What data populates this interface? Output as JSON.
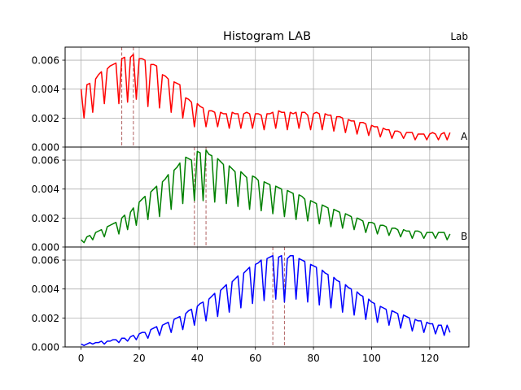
{
  "figure": {
    "title": "Histogram LAB",
    "corner_label": "Lab"
  },
  "chart_data": [
    {
      "type": "line",
      "panel_label": "A",
      "color": "#ff0000",
      "marker_color": "#b06060",
      "x_start": 0,
      "x_step": 1,
      "ylim": [
        0,
        0.0069
      ],
      "yticks": [
        "0.000",
        "0.002",
        "0.004",
        "0.006"
      ],
      "ytick_values": [
        0,
        0.002,
        0.004,
        0.006
      ],
      "markers": [
        14,
        18
      ],
      "grid": true,
      "values": [
        0.004,
        0.002,
        0.0043,
        0.0044,
        0.0024,
        0.0047,
        0.005,
        0.0052,
        0.003,
        0.0054,
        0.0056,
        0.0057,
        0.0058,
        0.003,
        0.0061,
        0.0062,
        0.0031,
        0.0062,
        0.0064,
        0.0033,
        0.0061,
        0.0061,
        0.006,
        0.0028,
        0.0057,
        0.0057,
        0.0056,
        0.0027,
        0.005,
        0.0049,
        0.0047,
        0.0024,
        0.0045,
        0.0044,
        0.0043,
        0.002,
        0.0034,
        0.0033,
        0.0031,
        0.0014,
        0.003,
        0.0028,
        0.0027,
        0.0014,
        0.0025,
        0.0025,
        0.0024,
        0.0014,
        0.0024,
        0.0023,
        0.0023,
        0.0013,
        0.0024,
        0.0023,
        0.0023,
        0.0013,
        0.0023,
        0.0024,
        0.0023,
        0.0013,
        0.0023,
        0.0023,
        0.0022,
        0.0012,
        0.0023,
        0.0023,
        0.0024,
        0.0013,
        0.0025,
        0.0024,
        0.0024,
        0.0012,
        0.0024,
        0.0023,
        0.0024,
        0.0013,
        0.0024,
        0.0024,
        0.0022,
        0.0012,
        0.0023,
        0.0024,
        0.0023,
        0.0012,
        0.0023,
        0.0022,
        0.0022,
        0.0011,
        0.0021,
        0.0021,
        0.002,
        0.001,
        0.0019,
        0.0018,
        0.0018,
        0.0009,
        0.0017,
        0.0017,
        0.0016,
        0.0008,
        0.0015,
        0.0014,
        0.0014,
        0.0007,
        0.0013,
        0.0012,
        0.0012,
        0.0006,
        0.0011,
        0.0011,
        0.001,
        0.0006,
        0.001,
        0.001,
        0.001,
        0.0005,
        0.0009,
        0.0009,
        0.0009,
        0.0005,
        0.0009,
        0.001,
        0.0009,
        0.0005,
        0.0009,
        0.001,
        0.0005,
        0.001
      ]
    },
    {
      "type": "line",
      "panel_label": "B",
      "color": "#008000",
      "marker_color": "#b06060",
      "x_start": 0,
      "x_step": 1,
      "ylim": [
        0,
        0.0069
      ],
      "yticks": [
        "0.000",
        "0.002",
        "0.004",
        "0.006"
      ],
      "ytick_values": [
        0,
        0.002,
        0.004,
        0.006
      ],
      "markers": [
        39,
        43
      ],
      "grid": true,
      "values": [
        0.0005,
        0.0003,
        0.0007,
        0.0008,
        0.0005,
        0.001,
        0.0011,
        0.0012,
        0.0007,
        0.0014,
        0.0015,
        0.0016,
        0.0017,
        0.0009,
        0.002,
        0.0022,
        0.0012,
        0.0024,
        0.0027,
        0.0015,
        0.0031,
        0.0033,
        0.0035,
        0.0019,
        0.0038,
        0.004,
        0.0042,
        0.0021,
        0.0045,
        0.0047,
        0.005,
        0.0026,
        0.0053,
        0.0055,
        0.0058,
        0.003,
        0.0062,
        0.0061,
        0.006,
        0.0032,
        0.0066,
        0.0065,
        0.0032,
        0.0067,
        0.0064,
        0.0063,
        0.0031,
        0.0061,
        0.0059,
        0.0057,
        0.003,
        0.0056,
        0.0054,
        0.0052,
        0.0028,
        0.0052,
        0.005,
        0.0048,
        0.0026,
        0.0049,
        0.0048,
        0.0046,
        0.0025,
        0.0045,
        0.0044,
        0.0043,
        0.0023,
        0.0042,
        0.0041,
        0.004,
        0.0021,
        0.0039,
        0.0038,
        0.0037,
        0.0019,
        0.0036,
        0.0035,
        0.0033,
        0.0018,
        0.0032,
        0.0031,
        0.003,
        0.0016,
        0.0029,
        0.0028,
        0.0027,
        0.0014,
        0.0026,
        0.0025,
        0.0024,
        0.0013,
        0.0023,
        0.0022,
        0.0021,
        0.0012,
        0.002,
        0.0019,
        0.0018,
        0.001,
        0.0017,
        0.0017,
        0.0016,
        0.0009,
        0.0015,
        0.0015,
        0.0014,
        0.0008,
        0.0013,
        0.0013,
        0.0012,
        0.0007,
        0.0012,
        0.0011,
        0.0011,
        0.0006,
        0.0011,
        0.0011,
        0.001,
        0.0006,
        0.001,
        0.001,
        0.001,
        0.0006,
        0.001,
        0.001,
        0.001,
        0.0005,
        0.0009
      ]
    },
    {
      "type": "line",
      "panel_label": "",
      "color": "#0000ff",
      "marker_color": "#b06060",
      "x_start": 0,
      "x_step": 1,
      "ylim": [
        0,
        0.0069
      ],
      "yticks": [
        "0.000",
        "0.002",
        "0.004",
        "0.006"
      ],
      "ytick_values": [
        0,
        0.002,
        0.004,
        0.006
      ],
      "xticks": [
        "0",
        "20",
        "40",
        "60",
        "80",
        "100",
        "120"
      ],
      "xtick_values": [
        0,
        20,
        40,
        60,
        80,
        100,
        120
      ],
      "xlim": [
        -5.5,
        133.5
      ],
      "markers": [
        66,
        70
      ],
      "grid": true,
      "values": [
        0.0002,
        0.0001,
        0.0002,
        0.0003,
        0.0002,
        0.0003,
        0.0003,
        0.0004,
        0.0002,
        0.0004,
        0.0004,
        0.0005,
        0.0005,
        0.0003,
        0.0006,
        0.0006,
        0.0004,
        0.0007,
        0.0008,
        0.0005,
        0.0009,
        0.001,
        0.001,
        0.0006,
        0.0012,
        0.0013,
        0.0014,
        0.0008,
        0.0015,
        0.0016,
        0.0017,
        0.001,
        0.0019,
        0.002,
        0.0021,
        0.0012,
        0.0023,
        0.0025,
        0.0026,
        0.0015,
        0.0028,
        0.003,
        0.0031,
        0.0018,
        0.0033,
        0.0035,
        0.0037,
        0.0021,
        0.0039,
        0.0041,
        0.0043,
        0.0024,
        0.0045,
        0.0047,
        0.0049,
        0.0027,
        0.0051,
        0.0053,
        0.0055,
        0.003,
        0.0057,
        0.0058,
        0.006,
        0.0032,
        0.0061,
        0.0062,
        0.0063,
        0.0033,
        0.0062,
        0.0063,
        0.0031,
        0.0061,
        0.0063,
        0.0063,
        0.0033,
        0.0061,
        0.006,
        0.0059,
        0.0031,
        0.0057,
        0.0056,
        0.0055,
        0.0029,
        0.0053,
        0.0051,
        0.005,
        0.0027,
        0.0048,
        0.0046,
        0.0045,
        0.0024,
        0.0043,
        0.0041,
        0.004,
        0.0022,
        0.0038,
        0.0036,
        0.0035,
        0.0019,
        0.0033,
        0.0031,
        0.003,
        0.0017,
        0.0028,
        0.0027,
        0.0026,
        0.0015,
        0.0025,
        0.0024,
        0.0023,
        0.0013,
        0.0022,
        0.0021,
        0.002,
        0.0011,
        0.0019,
        0.0018,
        0.0018,
        0.001,
        0.0017,
        0.0016,
        0.0016,
        0.0009,
        0.0015,
        0.0015,
        0.0008,
        0.0015,
        0.001
      ]
    }
  ]
}
